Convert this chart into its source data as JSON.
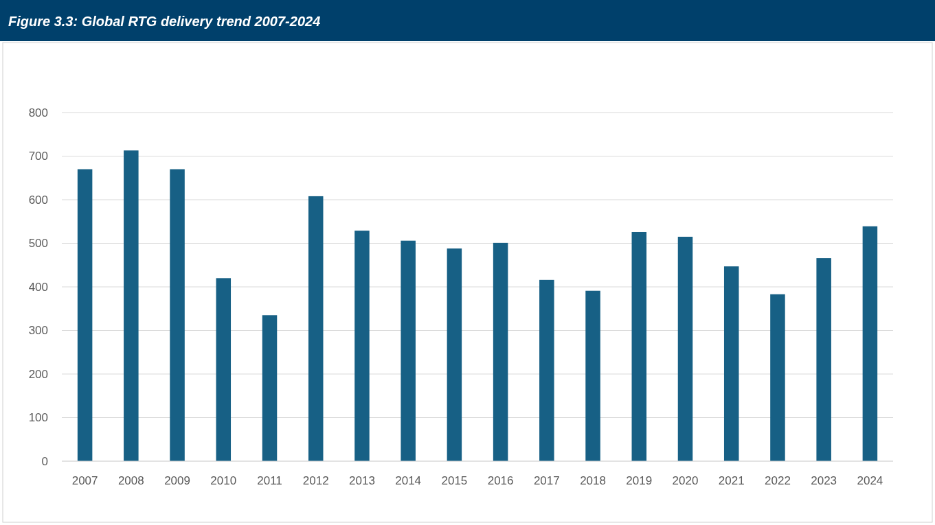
{
  "chart_data": {
    "type": "bar",
    "title": "Figure 3.3: Global RTG delivery trend 2007-2024",
    "categories": [
      "2007",
      "2008",
      "2009",
      "2010",
      "2011",
      "2012",
      "2013",
      "2014",
      "2015",
      "2016",
      "2017",
      "2018",
      "2019",
      "2020",
      "2021",
      "2022",
      "2023",
      "2024"
    ],
    "values": [
      670,
      713,
      670,
      420,
      335,
      608,
      529,
      506,
      488,
      501,
      416,
      391,
      526,
      515,
      447,
      383,
      466,
      539
    ],
    "color": "#176085",
    "ylim": [
      0,
      800
    ],
    "yticks": [
      0,
      100,
      200,
      300,
      400,
      500,
      600,
      700,
      800
    ],
    "grid": "y"
  }
}
